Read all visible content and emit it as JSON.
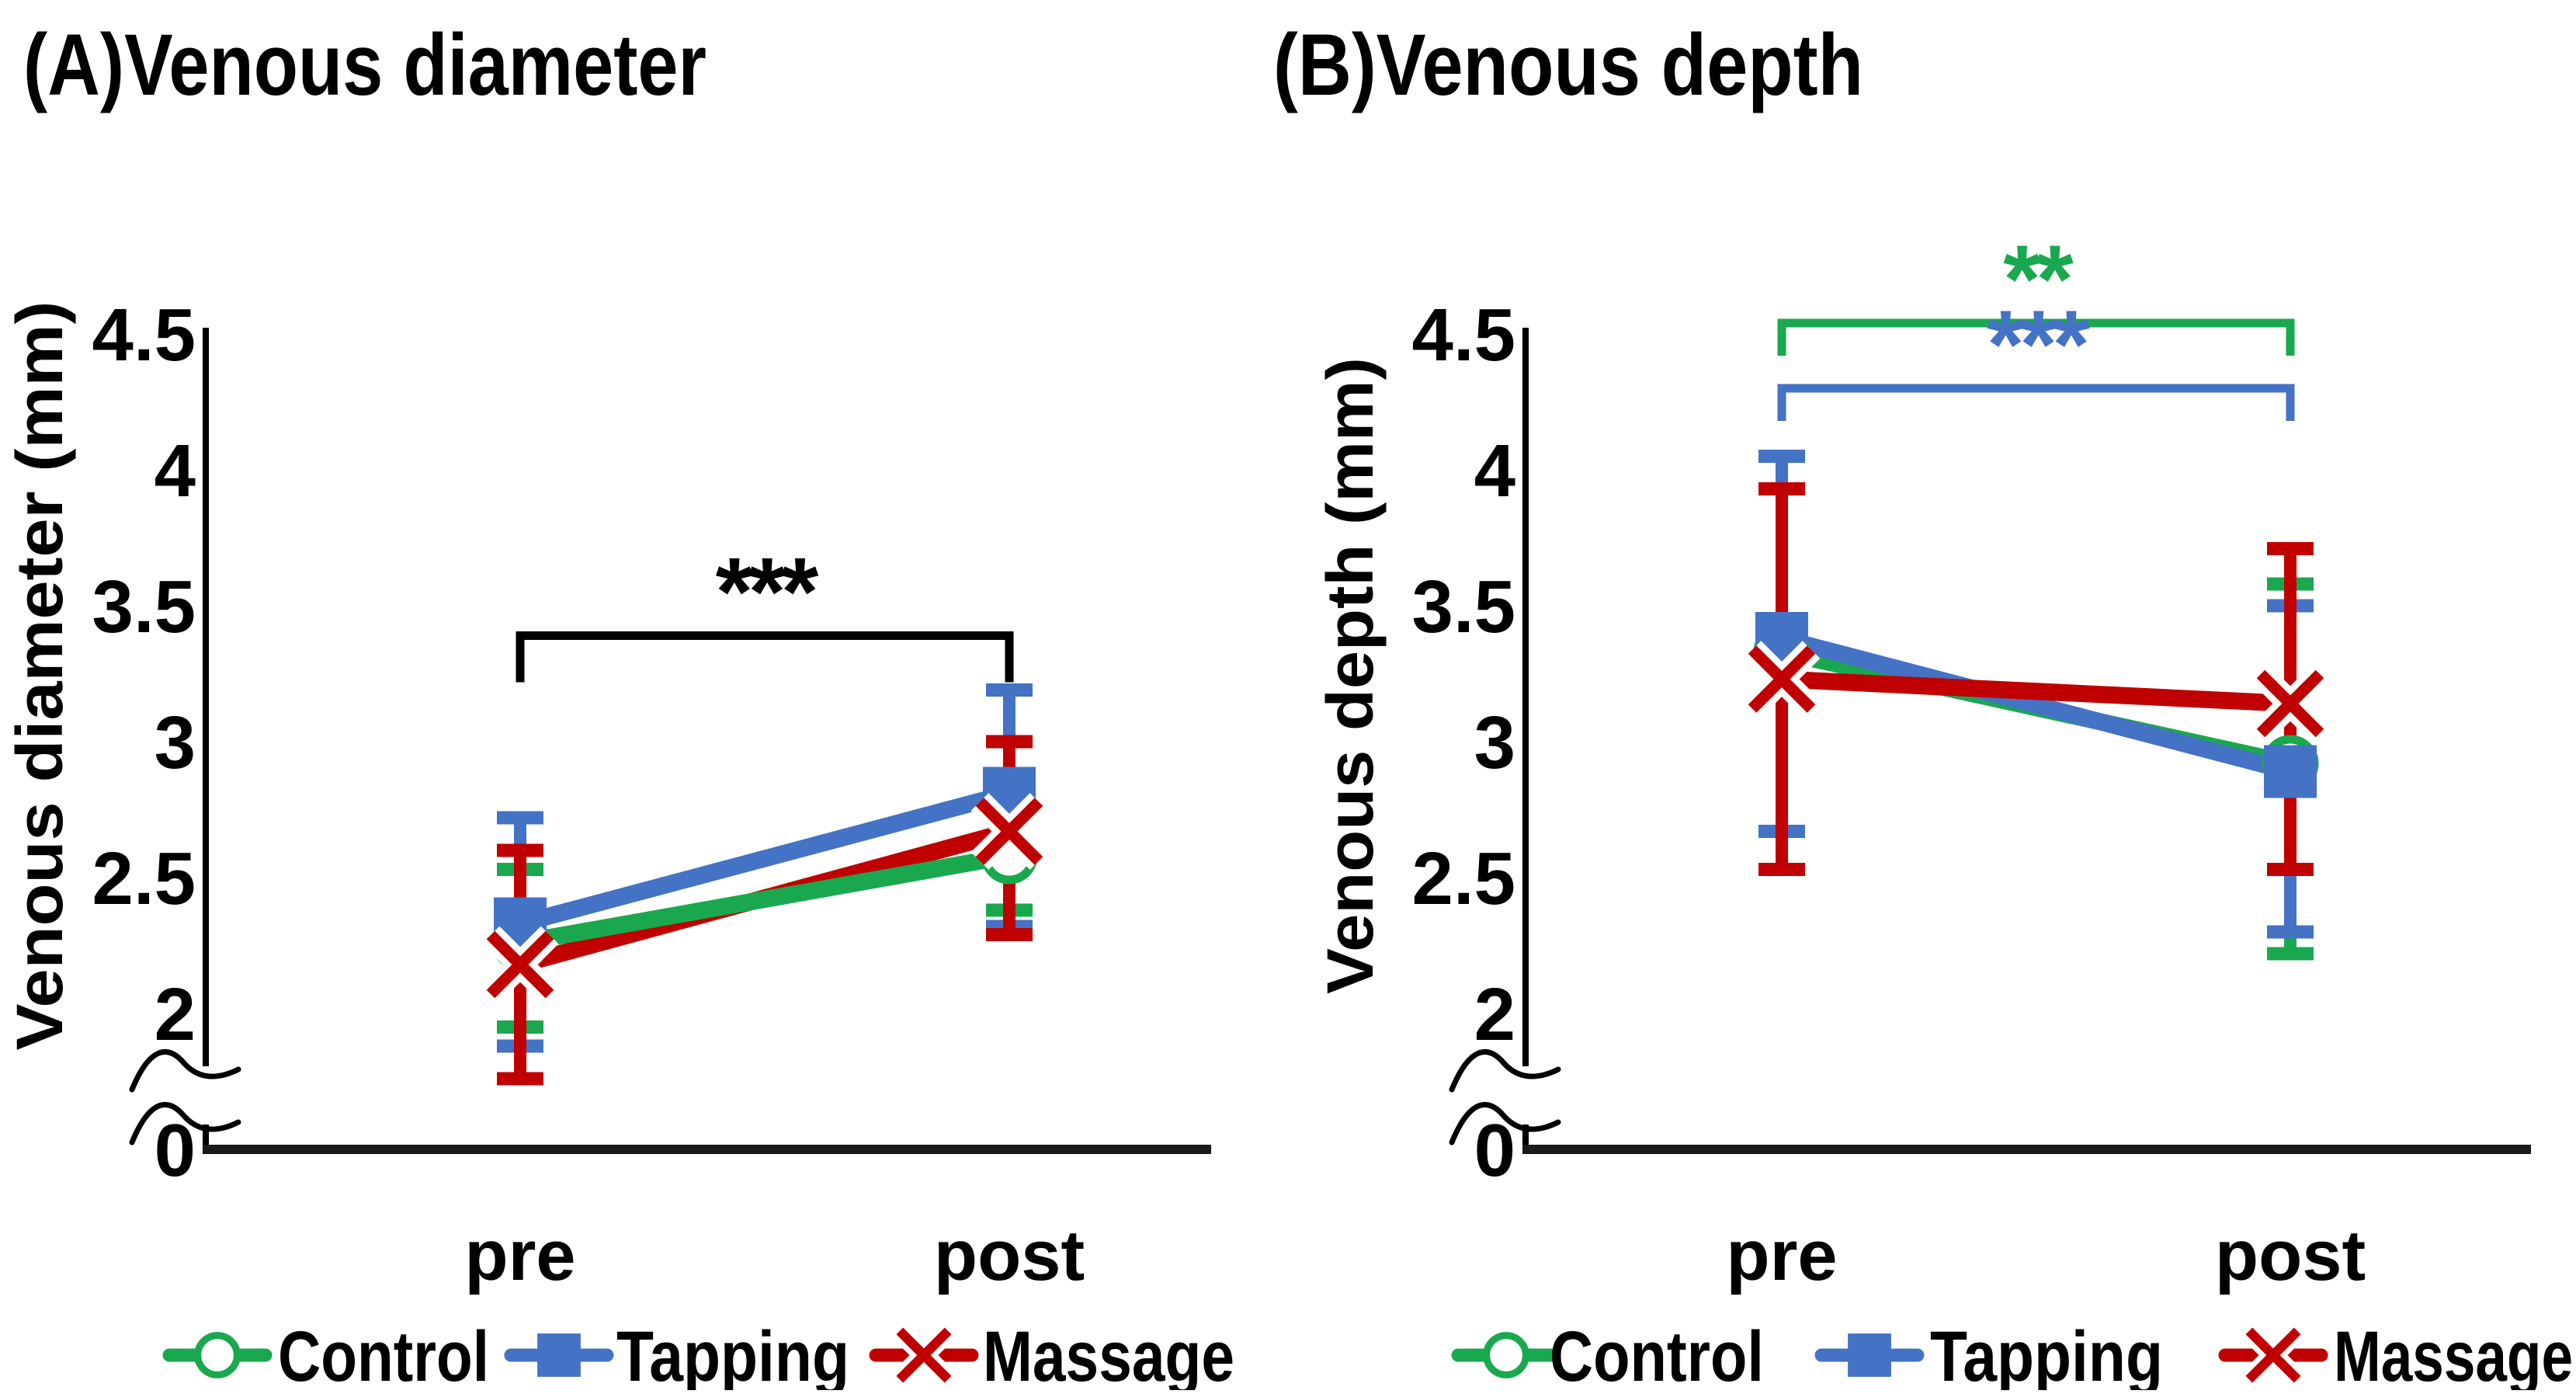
{
  "figure": {
    "background": "#ffffff",
    "x_category_labels": [
      "pre",
      "post"
    ],
    "legend_labels": [
      "Control",
      "Tapping",
      "Massage"
    ]
  },
  "chart_data": [
    {
      "type": "line",
      "id": "A",
      "title": "(A)Venous diameter",
      "ylabel": "Venous diameter (mm)",
      "xlabel": "",
      "x": [
        "pre",
        "post"
      ],
      "y_ticks": [
        "4.5",
        "4",
        "3.5",
        "3",
        "2.5",
        "2"
      ],
      "y_zero_label": "0",
      "axis_break": true,
      "ylim_display": [
        2,
        4.5
      ],
      "grid": false,
      "legend_position": "bottom",
      "series": [
        {
          "name": "Control",
          "color": "#1AA84F",
          "marker": "circle-open",
          "values": [
            2.26,
            2.58
          ],
          "error_low": [
            1.95,
            2.38
          ],
          "error_high": [
            2.53,
            2.88
          ]
        },
        {
          "name": "Tapping",
          "color": "#4472C4",
          "marker": "square",
          "values": [
            2.33,
            2.81
          ],
          "error_low": [
            1.88,
            2.32
          ],
          "error_high": [
            2.72,
            3.19
          ]
        },
        {
          "name": "Massage",
          "color": "#C00000",
          "marker": "x",
          "values": [
            2.18,
            2.67
          ],
          "error_low": [
            1.76,
            2.29
          ],
          "error_high": [
            2.6,
            3.0
          ]
        }
      ],
      "significance": [
        {
          "label": "***",
          "color": "#000000",
          "from": "pre",
          "to": "post",
          "height": 3.39
        }
      ]
    },
    {
      "type": "line",
      "id": "B",
      "title": "(B)Venous depth",
      "ylabel": "Venous depth (mm)",
      "xlabel": "",
      "x": [
        "pre",
        "post"
      ],
      "y_ticks": [
        "4.5",
        "4",
        "3.5",
        "3",
        "2.5",
        "2"
      ],
      "y_zero_label": "0",
      "axis_break": true,
      "ylim_display": [
        2,
        4.5
      ],
      "grid": false,
      "legend_position": "bottom",
      "series": [
        {
          "name": "Control",
          "color": "#1AA84F",
          "marker": "circle-open",
          "values": [
            3.33,
            2.92
          ],
          "error_low": [
            2.67,
            2.22
          ],
          "error_high": [
            3.93,
            3.58
          ]
        },
        {
          "name": "Tapping",
          "color": "#4472C4",
          "marker": "square",
          "values": [
            3.38,
            2.89
          ],
          "error_low": [
            2.67,
            2.3
          ],
          "error_high": [
            4.05,
            3.5
          ]
        },
        {
          "name": "Massage",
          "color": "#C00000",
          "marker": "x",
          "values": [
            3.23,
            3.14
          ],
          "error_low": [
            2.53,
            2.53
          ],
          "error_high": [
            3.93,
            3.71
          ]
        }
      ],
      "significance": [
        {
          "label": "**",
          "color": "#1AA84F",
          "from": "pre",
          "to": "post",
          "height": 4.54
        },
        {
          "label": "***",
          "color": "#4472C4",
          "from": "pre",
          "to": "post",
          "height": 4.3
        }
      ]
    }
  ]
}
